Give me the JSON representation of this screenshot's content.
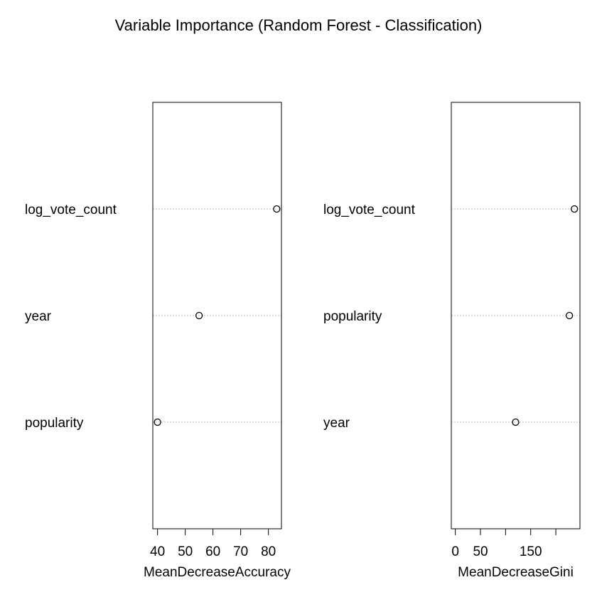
{
  "title": "Variable Importance (Random Forest - Classification)",
  "chart_data": [
    {
      "type": "dotchart",
      "categories": [
        "log_vote_count",
        "year",
        "popularity"
      ],
      "values": [
        83,
        55,
        40
      ],
      "xlabel": "MeanDecreaseAccuracy",
      "xlim": [
        38.3,
        84.7
      ],
      "ticks": [
        40,
        50,
        60,
        70,
        80
      ],
      "tick_labels": [
        "40",
        "50",
        "60",
        "70",
        "80"
      ],
      "grid": true
    },
    {
      "type": "dotchart",
      "categories": [
        "log_vote_count",
        "popularity",
        "year"
      ],
      "values": [
        237,
        227,
        120
      ],
      "xlabel": "MeanDecreaseGini",
      "xlim": [
        -8,
        248
      ],
      "ticks": [
        0,
        50,
        100,
        150,
        200
      ],
      "tick_labels": [
        "0",
        "50",
        "",
        "150",
        ""
      ],
      "grid": true
    }
  ]
}
